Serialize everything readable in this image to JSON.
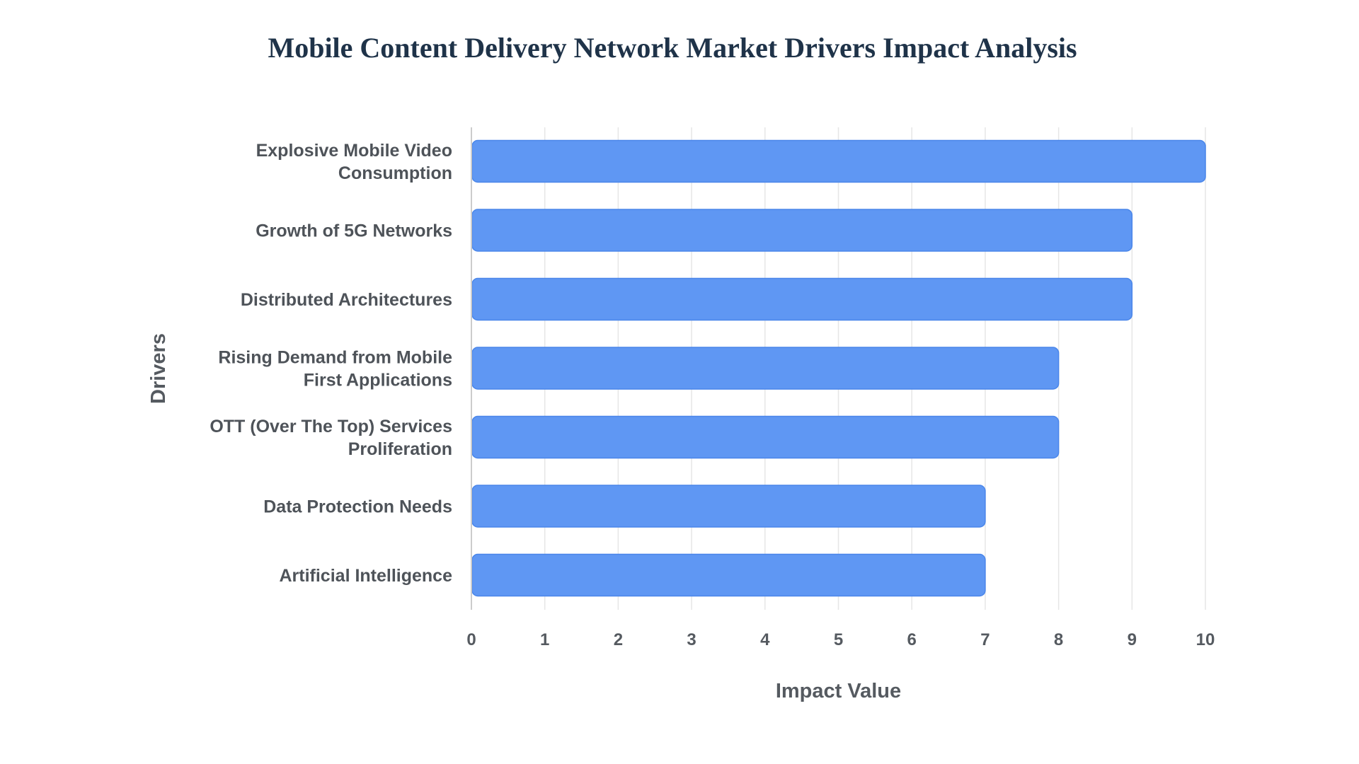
{
  "chart_data": {
    "type": "bar",
    "orientation": "horizontal",
    "title": "Mobile Content Delivery Network Market Drivers Impact Analysis",
    "xlabel": "Impact Value",
    "ylabel": "Drivers",
    "xlim": [
      0,
      10
    ],
    "xticks": [
      "0",
      "1",
      "2",
      "3",
      "4",
      "5",
      "6",
      "7",
      "8",
      "9",
      "10"
    ],
    "grid": "vertical",
    "categories": [
      [
        "Explosive Mobile Video",
        "Consumption"
      ],
      [
        "Growth of 5G Networks"
      ],
      [
        "Distributed Architectures"
      ],
      [
        "Rising Demand from Mobile",
        "First Applications"
      ],
      [
        "OTT (Over The Top) Services",
        "Proliferation"
      ],
      [
        "Data Protection Needs"
      ],
      [
        "Artificial Intelligence"
      ]
    ],
    "values": [
      10,
      9,
      9,
      8,
      8,
      7,
      7
    ],
    "colors": {
      "bar": "#5f97f3",
      "bar_edge": "#4a86ea",
      "grid": "#e6e6e6",
      "axis": "#cccccc",
      "title": "#1f3349"
    }
  }
}
